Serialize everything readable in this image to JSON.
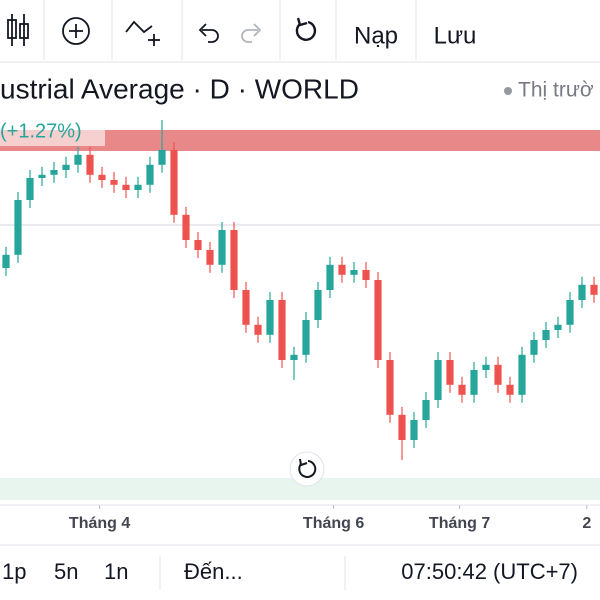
{
  "toolbar": {
    "buttons": [
      "Nạp",
      "Lưu"
    ]
  },
  "header": {
    "title": "ustrial Average · D · WORLD",
    "status": "Thị trườ",
    "change": "(+1.27%)"
  },
  "chart_data": {
    "type": "candlestick",
    "up_color": "#26a69a",
    "down_color": "#ef5350",
    "xlim": [
      -0.5,
      49.5
    ],
    "ylim": [
      0,
      95
    ],
    "xticks": [
      {
        "value": 7.8,
        "label": "Tháng 4"
      },
      {
        "value": 27.3,
        "label": "Tháng 6"
      },
      {
        "value": 37.8,
        "label": "Tháng 7"
      },
      {
        "value": 48.4,
        "label": "2"
      }
    ],
    "open": [
      58,
      61.3,
      75,
      80.5,
      81.3,
      82.5,
      83.8,
      86.3,
      81.3,
      80,
      78.8,
      77.5,
      78.8,
      83.8,
      87.5,
      71.3,
      65,
      62.5,
      58.8,
      67.5,
      52.5,
      43.8,
      41.3,
      50,
      35,
      36.3,
      45,
      52.5,
      58.8,
      56.3,
      57.5,
      55,
      35,
      21.3,
      15,
      20,
      25,
      35,
      28.8,
      26.3,
      32.5,
      33.8,
      28.8,
      26.3,
      36.3,
      40,
      42.5,
      43.8,
      50,
      53.8
    ],
    "high": [
      63.3,
      77,
      82.5,
      83.3,
      84.5,
      85.8,
      88.3,
      88.3,
      83.3,
      82,
      80.8,
      80.8,
      85.8,
      95,
      89.5,
      73.3,
      67,
      64.5,
      69.5,
      69.5,
      54.5,
      45.8,
      52,
      52,
      38.3,
      47,
      54.5,
      60.8,
      60.8,
      59.5,
      59.5,
      57,
      37,
      23.3,
      22,
      27,
      37,
      37,
      30.8,
      34.5,
      35.8,
      35.8,
      30.8,
      38.3,
      42,
      44.5,
      45.8,
      52,
      55.8,
      55.8
    ],
    "low": [
      56,
      59.3,
      73,
      78.5,
      79.3,
      80.5,
      81.8,
      79.3,
      78,
      76.8,
      75.5,
      75.5,
      76.8,
      81.8,
      69.3,
      63,
      60.5,
      56.8,
      56.8,
      50.5,
      41.8,
      39.3,
      39.3,
      33,
      30,
      34.3,
      43,
      50.5,
      54.3,
      54.3,
      53,
      33,
      19.3,
      10,
      13,
      18,
      23,
      26.8,
      24.3,
      24.3,
      30.5,
      26.8,
      24.3,
      24.3,
      34.3,
      38,
      40.5,
      41.8,
      48,
      49.3
    ],
    "close": [
      61.3,
      75,
      80.5,
      81.3,
      82.5,
      83.8,
      86.3,
      81.3,
      80,
      78.8,
      77.5,
      78.8,
      83.8,
      87.5,
      71.3,
      65,
      62.5,
      58.8,
      67.5,
      52.5,
      43.8,
      41.3,
      50,
      35,
      36.3,
      45,
      52.5,
      58.8,
      56.3,
      57.5,
      55,
      35,
      21.3,
      15,
      20,
      25,
      35,
      28.8,
      26.3,
      32.5,
      33.8,
      28.8,
      26.3,
      36.3,
      40,
      42.5,
      43.8,
      50,
      53.8,
      51.3
    ]
  },
  "footer": {
    "intervals": [
      "1p",
      "5n",
      "1n"
    ],
    "range": "Đến...",
    "time": "07:50:42 (UTC+7)"
  }
}
